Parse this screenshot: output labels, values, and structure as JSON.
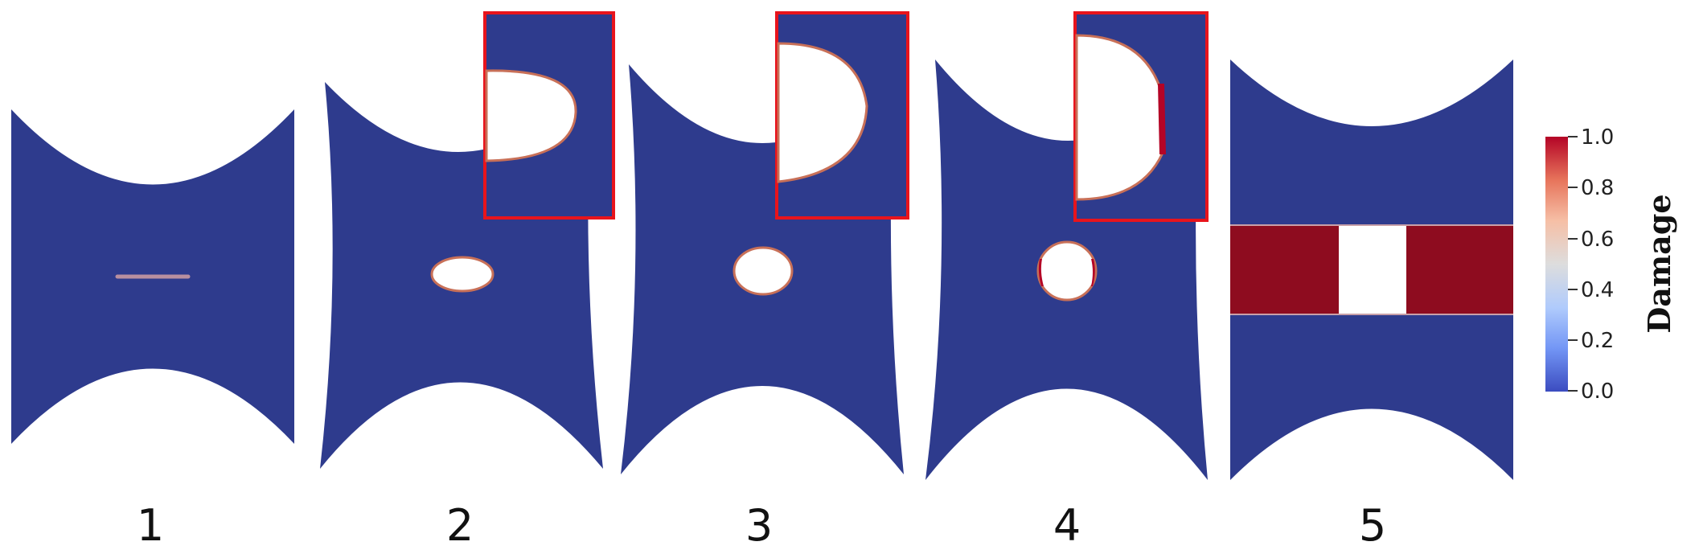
{
  "panels": [
    {
      "number": "1",
      "stage": "initial-crack"
    },
    {
      "number": "2",
      "stage": "opening-hole",
      "has_zoom_inset": true
    },
    {
      "number": "3",
      "stage": "opening-hole",
      "has_zoom_inset": true
    },
    {
      "number": "4",
      "stage": "crack-initiation",
      "has_zoom_inset": true
    },
    {
      "number": "5",
      "stage": "full-damage-band"
    }
  ],
  "colorbar": {
    "title": "Damage",
    "ticks": [
      "1.0",
      "0.8",
      "0.6",
      "0.4",
      "0.2",
      "0.0"
    ],
    "min": 0.0,
    "max": 1.0,
    "colormap": [
      "#3b4cc0",
      "#7396f5",
      "#b0cbfc",
      "#dddddd",
      "#f6bfa6",
      "#e7745b",
      "#b40426"
    ]
  },
  "colors": {
    "specimen_intact": "#2e3b8d",
    "damage_full": "#8e0c1f",
    "crack_edge": "#c87058",
    "inset_border": "#e8141c"
  }
}
